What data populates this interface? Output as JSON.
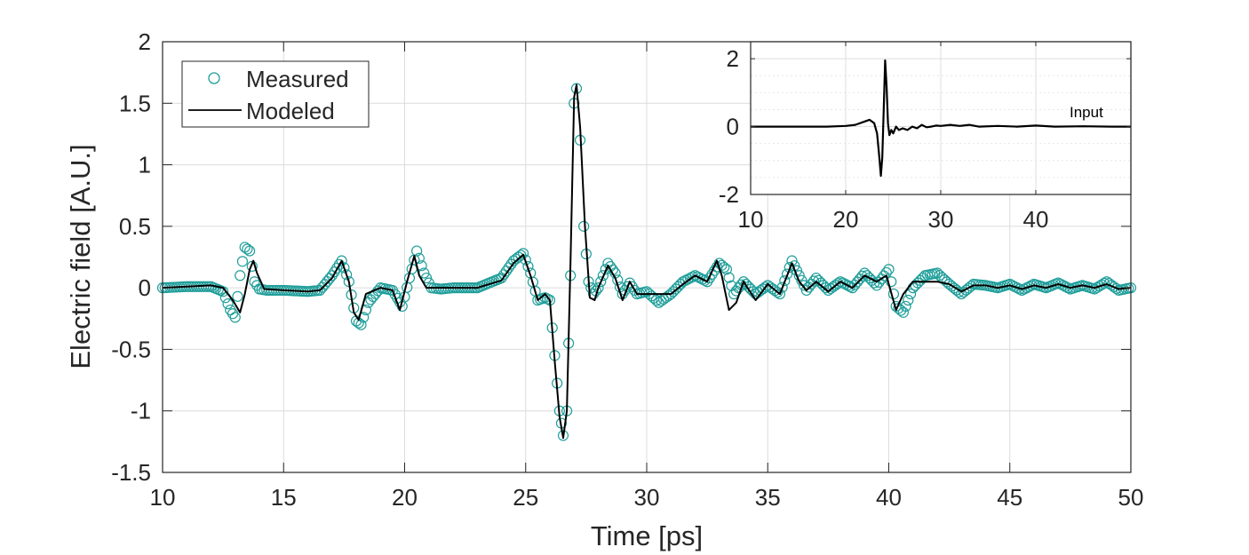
{
  "chart_data": [
    {
      "type": "line",
      "title": "",
      "xlabel": "Time [ps]",
      "ylabel": "Electric field [A.U.]",
      "xlim": [
        10,
        50
      ],
      "ylim": [
        -1.5,
        2
      ],
      "xticks": [
        "10",
        "15",
        "20",
        "25",
        "30",
        "35",
        "40",
        "45",
        "50"
      ],
      "yticks": [
        "-1.5",
        "-1",
        "-0.5",
        "0",
        "0.5",
        "1",
        "1.5",
        "2"
      ],
      "grid": true,
      "legend_position": "top-left",
      "colors": {
        "measured": "#1f9e9a",
        "modeled": "#000000"
      },
      "series": [
        {
          "name": "Measured",
          "style": "circle-markers",
          "x": [
            10,
            11,
            12,
            12.5,
            12.8,
            13.0,
            13.2,
            13.4,
            13.6,
            13.8,
            14.0,
            14.3,
            15,
            16,
            16.5,
            17.0,
            17.4,
            17.7,
            18.0,
            18.2,
            18.5,
            19,
            19.5,
            19.9,
            20.2,
            20.5,
            20.8,
            21.1,
            21.5,
            22,
            23,
            24,
            24.5,
            24.9,
            25.2,
            25.5,
            25.8,
            26.0,
            26.2,
            26.4,
            26.55,
            26.7,
            26.85,
            27.0,
            27.1,
            27.25,
            27.4,
            27.6,
            27.8,
            28.0,
            28.4,
            28.7,
            29.0,
            29.3,
            29.6,
            30.0,
            30.5,
            31.0,
            31.5,
            32.0,
            32.5,
            33.0,
            33.3,
            33.6,
            34.0,
            34.5,
            35.0,
            35.5,
            36.0,
            36.3,
            36.6,
            37.0,
            37.5,
            38.0,
            38.5,
            39.0,
            39.5,
            40.0,
            40.3,
            40.6,
            41.0,
            41.5,
            42.0,
            42.5,
            43.0,
            43.5,
            44.0,
            44.5,
            45.0,
            45.5,
            46.0,
            46.5,
            47.0,
            47.5,
            48.0,
            48.5,
            49.0,
            49.5,
            50.0
          ],
          "y": [
            0.0,
            0.01,
            0.01,
            -0.03,
            -0.18,
            -0.24,
            0.1,
            0.33,
            0.3,
            0.05,
            -0.01,
            -0.02,
            -0.02,
            -0.03,
            -0.02,
            0.1,
            0.22,
            0.05,
            -0.27,
            -0.3,
            -0.12,
            0.0,
            -0.02,
            -0.15,
            0.08,
            0.3,
            0.12,
            0.0,
            -0.01,
            0.0,
            0.0,
            0.08,
            0.22,
            0.28,
            0.12,
            -0.1,
            -0.08,
            -0.1,
            -0.55,
            -1.0,
            -1.2,
            -1.0,
            0.1,
            1.5,
            1.62,
            1.2,
            0.5,
            0.05,
            -0.05,
            0.0,
            0.2,
            0.12,
            -0.05,
            0.04,
            -0.05,
            -0.03,
            -0.12,
            -0.05,
            0.05,
            0.1,
            0.05,
            0.2,
            0.15,
            -0.05,
            0.05,
            -0.05,
            0.02,
            -0.05,
            0.22,
            0.1,
            -0.02,
            0.08,
            -0.02,
            0.05,
            0.0,
            0.12,
            0.02,
            0.15,
            -0.15,
            -0.2,
            0.0,
            0.1,
            0.12,
            0.03,
            -0.05,
            0.03,
            0.02,
            0.0,
            0.03,
            -0.02,
            0.03,
            0.0,
            0.04,
            -0.01,
            0.02,
            -0.01,
            0.05,
            -0.02,
            0.0
          ]
        },
        {
          "name": "Modeled",
          "style": "solid-line",
          "x": [
            10,
            11,
            12,
            12.5,
            12.9,
            13.2,
            13.4,
            13.6,
            13.75,
            13.9,
            14.2,
            15,
            16,
            16.5,
            17.0,
            17.4,
            17.7,
            17.9,
            18.1,
            18.4,
            19,
            19.5,
            19.8,
            20.1,
            20.4,
            20.6,
            20.9,
            21.3,
            22,
            23,
            24,
            24.5,
            24.9,
            25.2,
            25.5,
            25.8,
            26.0,
            26.2,
            26.4,
            26.55,
            26.7,
            26.85,
            27.0,
            27.1,
            27.25,
            27.45,
            27.65,
            27.85,
            28.0,
            28.4,
            28.7,
            29.0,
            29.3,
            29.6,
            30.0,
            30.5,
            31.0,
            31.5,
            32.0,
            32.5,
            32.9,
            33.1,
            33.4,
            33.7,
            34.0,
            34.5,
            35.0,
            35.5,
            36.0,
            36.3,
            36.6,
            37.0,
            37.5,
            38.0,
            38.5,
            39.0,
            39.5,
            39.9,
            40.3,
            40.6,
            41.0,
            41.5,
            42.0,
            42.5,
            43.0,
            43.5,
            44.0,
            44.5,
            45.0,
            45.5,
            46.0,
            46.5,
            47.0,
            47.5,
            48.0,
            48.5,
            49.0,
            49.5,
            50.0
          ],
          "y": [
            0.0,
            0.01,
            0.02,
            0.0,
            -0.1,
            -0.2,
            -0.05,
            0.15,
            0.22,
            0.12,
            -0.01,
            -0.02,
            -0.03,
            -0.02,
            0.08,
            0.22,
            0.05,
            -0.2,
            -0.26,
            -0.05,
            0.0,
            -0.02,
            -0.18,
            0.05,
            0.26,
            0.1,
            0.0,
            0.0,
            0.0,
            0.0,
            0.06,
            0.2,
            0.27,
            0.1,
            -0.1,
            -0.05,
            -0.1,
            -0.6,
            -1.05,
            -1.22,
            -1.0,
            0.2,
            1.55,
            1.65,
            1.3,
            0.5,
            -0.08,
            -0.1,
            0.0,
            0.18,
            0.08,
            -0.1,
            0.05,
            -0.05,
            -0.05,
            -0.05,
            -0.05,
            0.03,
            0.1,
            0.05,
            0.22,
            0.1,
            -0.18,
            -0.12,
            0.05,
            -0.1,
            0.03,
            -0.05,
            0.2,
            0.05,
            -0.02,
            0.05,
            -0.03,
            0.05,
            0.0,
            0.1,
            0.05,
            0.1,
            -0.18,
            -0.05,
            0.05,
            0.05,
            0.05,
            0.03,
            -0.03,
            0.02,
            0.02,
            0.0,
            0.02,
            -0.01,
            0.02,
            0.0,
            0.03,
            0.0,
            0.02,
            0.0,
            0.03,
            -0.01,
            0.0
          ]
        }
      ]
    },
    {
      "type": "line",
      "title": "",
      "xlabel": "",
      "ylabel": "",
      "xlim": [
        10,
        50
      ],
      "ylim": [
        -2,
        2.5
      ],
      "xticks": [
        "10",
        "20",
        "30",
        "40"
      ],
      "yticks": [
        "-2",
        "0",
        "2"
      ],
      "grid": true,
      "annotation": "Input",
      "series": [
        {
          "name": "Input",
          "style": "solid-line",
          "x": [
            10,
            12,
            15,
            18,
            20,
            21,
            22,
            22.5,
            23,
            23.3,
            23.5,
            23.7,
            23.85,
            24.0,
            24.15,
            24.3,
            24.45,
            24.6,
            24.8,
            25.0,
            25.3,
            25.6,
            26,
            26.5,
            27,
            27.5,
            28,
            28.5,
            29,
            29.5,
            30,
            31,
            32,
            33,
            34,
            36,
            38,
            40,
            42,
            45,
            48,
            50
          ],
          "y": [
            0.0,
            0.0,
            0.0,
            0.0,
            0.02,
            0.05,
            0.15,
            0.2,
            0.1,
            -0.2,
            -0.8,
            -1.45,
            -0.9,
            0.5,
            1.95,
            1.2,
            0.1,
            -0.25,
            -0.1,
            -0.2,
            0.0,
            -0.1,
            -0.05,
            -0.1,
            0.0,
            -0.05,
            0.05,
            -0.02,
            0.0,
            0.03,
            0.02,
            0.05,
            0.02,
            0.05,
            0.0,
            0.02,
            0.0,
            0.03,
            0.0,
            0.01,
            0.0,
            0.0
          ]
        }
      ]
    }
  ]
}
